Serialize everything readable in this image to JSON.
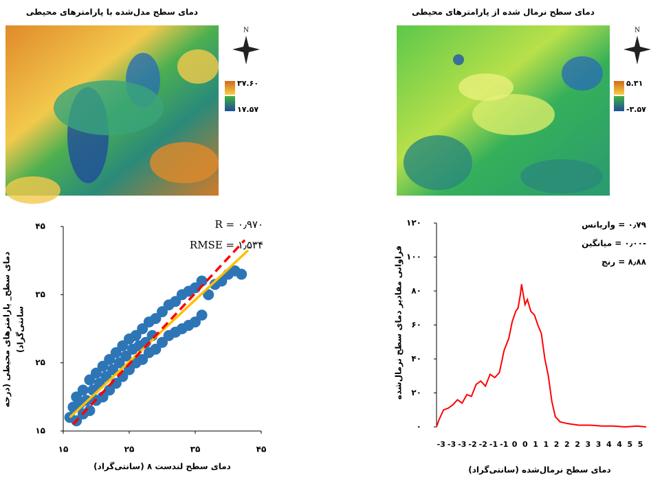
{
  "maps": [
    {
      "title": "دمای سطح مدل‌شده با پارامترهای محیطی",
      "north": "N",
      "legend_max": "۳۷.۶۰",
      "legend_min": "۱۷.۵۷"
    },
    {
      "title": "دمای سطح نرمال شده از پارامترهای محیطی",
      "north": "N",
      "legend_max": "۵.۳۱",
      "legend_min": "-۳.۵۷"
    }
  ],
  "chart_data": [
    {
      "type": "scatter",
      "xlabel": "دمای سطح لندست ۸ (سانتی‌گراد)",
      "ylabel": [
        "دمای سطح_ پارامترهای محیطی (درجه",
        "سانتی‌گراد)"
      ],
      "annotations": [
        "R = ۰٫۹۷۰",
        "RMSE = ۱٫۵۳۴"
      ],
      "xlim": [
        15,
        45
      ],
      "ylim": [
        15,
        45
      ],
      "xticks": [
        {
          "value": 15,
          "label": "۱۵"
        },
        {
          "value": 25,
          "label": "۲۵"
        },
        {
          "value": 35,
          "label": "۳۵"
        },
        {
          "value": 45,
          "label": "۴۵"
        }
      ],
      "yticks": [
        {
          "value": 15,
          "label": "۱۵"
        },
        {
          "value": 25,
          "label": "۲۵"
        },
        {
          "value": 35,
          "label": "۳۵"
        },
        {
          "value": 45,
          "label": "۴۵"
        }
      ],
      "series": [
        {
          "color": "#2e75b6",
          "mode": "points",
          "x": [
            16,
            16.5,
            17,
            17,
            17.5,
            18,
            18,
            18.5,
            19,
            19,
            19.5,
            20,
            20,
            20.5,
            21,
            21,
            21.5,
            22,
            22,
            22.5,
            23,
            23,
            23.5,
            24,
            24,
            24.5,
            25,
            25,
            25.5,
            26,
            26,
            26.5,
            27,
            27,
            27.5,
            28,
            28,
            28.5,
            29,
            29,
            30,
            30,
            31,
            31,
            32,
            32,
            33,
            33,
            34,
            34,
            35,
            35,
            36,
            36,
            37,
            38,
            39,
            40,
            41,
            42
          ],
          "values": [
            17,
            18.5,
            16.5,
            20,
            19,
            17.5,
            21,
            19.5,
            18,
            22.5,
            21,
            19.5,
            23.5,
            22,
            20,
            24.5,
            23,
            21,
            25.5,
            24,
            22,
            26.5,
            25,
            23,
            27.5,
            26,
            24,
            28.5,
            27,
            25,
            29,
            27.5,
            25.5,
            30,
            28,
            26.5,
            31,
            29,
            27,
            31.5,
            28,
            32.5,
            29,
            33.5,
            29.5,
            34,
            30,
            35,
            30.5,
            35.5,
            31,
            36,
            32,
            37,
            35,
            36.5,
            37,
            38,
            38.5,
            38
          ]
        },
        {
          "color": "#ffc000",
          "mode": "line",
          "x": [
            16,
            43
          ],
          "values": [
            17,
            41.5
          ]
        },
        {
          "color": "#ff0000",
          "mode": "dashed",
          "x": [
            16.5,
            42.5
          ],
          "values": [
            16,
            43
          ]
        }
      ]
    },
    {
      "type": "line",
      "xlabel": "دمای سطح نرمال‌شده (سانتی‌گراد)",
      "ylabel": "فراوانی مقادیر دمای سطح نرمال‌شده",
      "annotations": [
        "۰٫۷۹ = واریانس",
        "-۰٫۰۰ = میانگین",
        "۸٫۸۸ = رنج"
      ],
      "xlim": [
        -3.6,
        5.4
      ],
      "ylim": [
        0,
        120
      ],
      "xticks": [
        {
          "value": -3.4,
          "label": "-3"
        },
        {
          "value": -2.95,
          "label": "-3"
        },
        {
          "value": -2.5,
          "label": "-3"
        },
        {
          "value": -2.05,
          "label": "-2"
        },
        {
          "value": -1.6,
          "label": "-2"
        },
        {
          "value": -1.15,
          "label": "-1"
        },
        {
          "value": -0.7,
          "label": "-1"
        },
        {
          "value": -0.25,
          "label": "0"
        },
        {
          "value": 0.2,
          "label": "0"
        },
        {
          "value": 0.65,
          "label": "1"
        },
        {
          "value": 1.1,
          "label": "1"
        },
        {
          "value": 1.55,
          "label": "2"
        },
        {
          "value": 2.0,
          "label": "2"
        },
        {
          "value": 2.45,
          "label": "2"
        },
        {
          "value": 2.9,
          "label": "3"
        },
        {
          "value": 3.35,
          "label": "3"
        },
        {
          "value": 3.8,
          "label": "4"
        },
        {
          "value": 4.25,
          "label": "4"
        },
        {
          "value": 4.7,
          "label": "5"
        },
        {
          "value": 5.15,
          "label": "5"
        }
      ],
      "yticks": [
        {
          "value": 0,
          "label": "۰"
        },
        {
          "value": 20,
          "label": "۲۰"
        },
        {
          "value": 40,
          "label": "۴۰"
        },
        {
          "value": 60,
          "label": "۶۰"
        },
        {
          "value": 80,
          "label": "۸۰"
        },
        {
          "value": 100,
          "label": "۱۰۰"
        },
        {
          "value": 120,
          "label": "۱۲۰"
        }
      ],
      "series": [
        {
          "color": "#ff0000",
          "x": [
            -3.6,
            -3.5,
            -3.3,
            -3.1,
            -2.9,
            -2.7,
            -2.5,
            -2.3,
            -2.1,
            -1.9,
            -1.7,
            -1.5,
            -1.3,
            -1.1,
            -0.9,
            -0.7,
            -0.5,
            -0.35,
            -0.2,
            -0.1,
            0,
            0.05,
            0.1,
            0.2,
            0.3,
            0.45,
            0.6,
            0.75,
            0.9,
            1.05,
            1.2,
            1.35,
            1.5,
            1.7,
            2,
            2.5,
            3,
            3.5,
            4,
            4.5,
            5,
            5.4
          ],
          "values": [
            0,
            4,
            10,
            11,
            13,
            16,
            14,
            19,
            18,
            25,
            27,
            24,
            31,
            29,
            32,
            45,
            52,
            62,
            68,
            70,
            78,
            84,
            80,
            72,
            75,
            68,
            66,
            60,
            55,
            40,
            30,
            15,
            6,
            3,
            2,
            1,
            1,
            0.5,
            0.5,
            0,
            0.5,
            0
          ]
        }
      ]
    }
  ]
}
